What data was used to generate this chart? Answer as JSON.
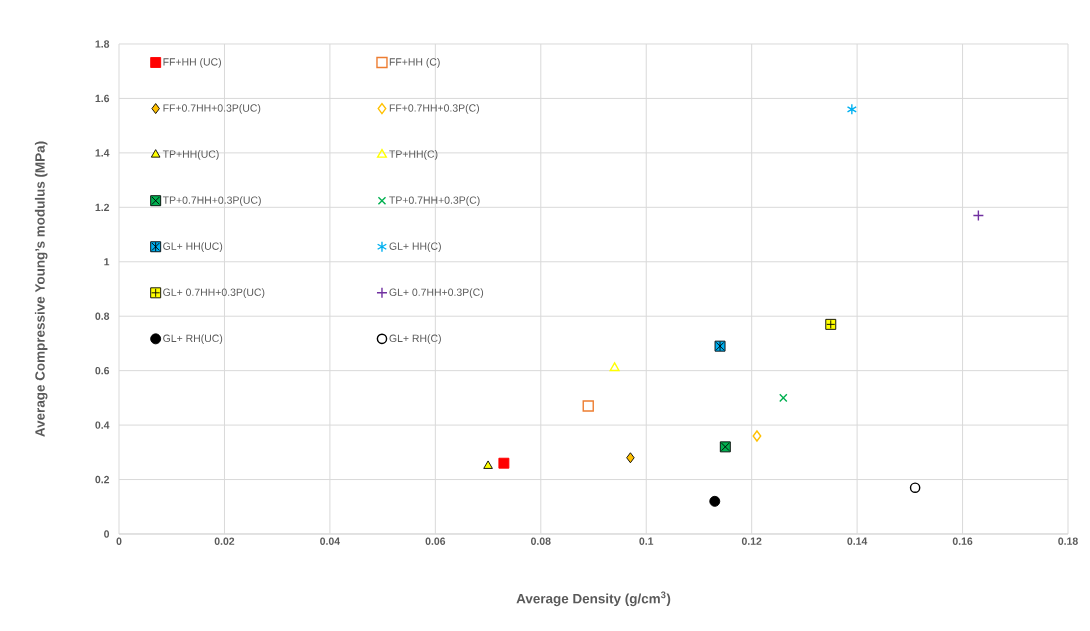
{
  "chart_data": {
    "type": "scatter",
    "xlabel": "Average Density (g/cm$^{3}$)",
    "ylabel": "Average Compressive Young’s modulus (MPa)",
    "xlim": [
      0,
      0.18
    ],
    "ylim": [
      0,
      1.8
    ],
    "xticks": [
      0,
      0.02,
      0.04,
      0.06,
      0.08,
      0.1,
      0.12,
      0.14,
      0.16,
      0.18
    ],
    "yticks": [
      0,
      0.2,
      0.4,
      0.6,
      0.8,
      1,
      1.2,
      1.4,
      1.6,
      1.8
    ],
    "grid": true,
    "legend": "top left",
    "series": [
      {
        "name": "FF+HH (UC)",
        "color": "#ff0000",
        "marker": "square",
        "x": [
          0.073
        ],
        "values": [
          0.26
        ]
      },
      {
        "name": "FF+HH (C)",
        "color": "#ed7d31",
        "marker": "square",
        "x": [
          0.089
        ],
        "values": [
          0.47
        ]
      },
      {
        "name": "FF+0.7HH+0.3P(UC)",
        "color": "#ffc000",
        "marker": "diamond",
        "x": [
          0.097
        ],
        "values": [
          0.28
        ]
      },
      {
        "name": "FF+0.7HH+0.3P(C)",
        "color": "#ffc000",
        "marker": "diamond",
        "x": [
          0.121
        ],
        "values": [
          0.36
        ]
      },
      {
        "name": "TP+HH(UC)",
        "color": "#ffff00",
        "marker": "triangle",
        "x": [
          0.07
        ],
        "values": [
          0.25
        ]
      },
      {
        "name": "TP+HH(C)",
        "color": "#ffff00",
        "marker": "triangle",
        "x": [
          0.094
        ],
        "values": [
          0.61
        ]
      },
      {
        "name": "TP+0.7HH+0.3P(UC)",
        "color": "#00b050",
        "marker": "cross",
        "x": [
          0.115
        ],
        "values": [
          0.32
        ]
      },
      {
        "name": "TP+0.7HH+0.3P(C)",
        "color": "#00b050",
        "marker": "cross",
        "x": [
          0.126
        ],
        "values": [
          0.5
        ]
      },
      {
        "name": "GL+ HH(UC)",
        "color": "#00b0f0",
        "x": [
          0.114
        ],
        "values": [
          0.69
        ]
      },
      {
        "name": "GL+ HH(C)",
        "color": "#00b0f0",
        "x": [
          0.139
        ],
        "values": [
          1.56
        ]
      },
      {
        "name": "GL+ 0.7HH+0.3P(UC)",
        "color": "#ffff00",
        "marker": "plus",
        "x": [
          0.135
        ],
        "values": [
          0.77
        ]
      },
      {
        "name": "GL+ 0.7HH+0.3P(C)",
        "color": "#7030a0",
        "marker": "plus",
        "x": [
          0.163
        ],
        "values": [
          1.17
        ]
      },
      {
        "name": "GL+ RH(UC)",
        "color": "#000000",
        "marker": "circle",
        "x": [
          0.113
        ],
        "values": [
          0.12
        ]
      },
      {
        "name": "GL+ RH(C)",
        "color": "#000000",
        "marker": "circle",
        "x": [
          0.151
        ],
        "values": [
          0.17
        ]
      }
    ]
  }
}
